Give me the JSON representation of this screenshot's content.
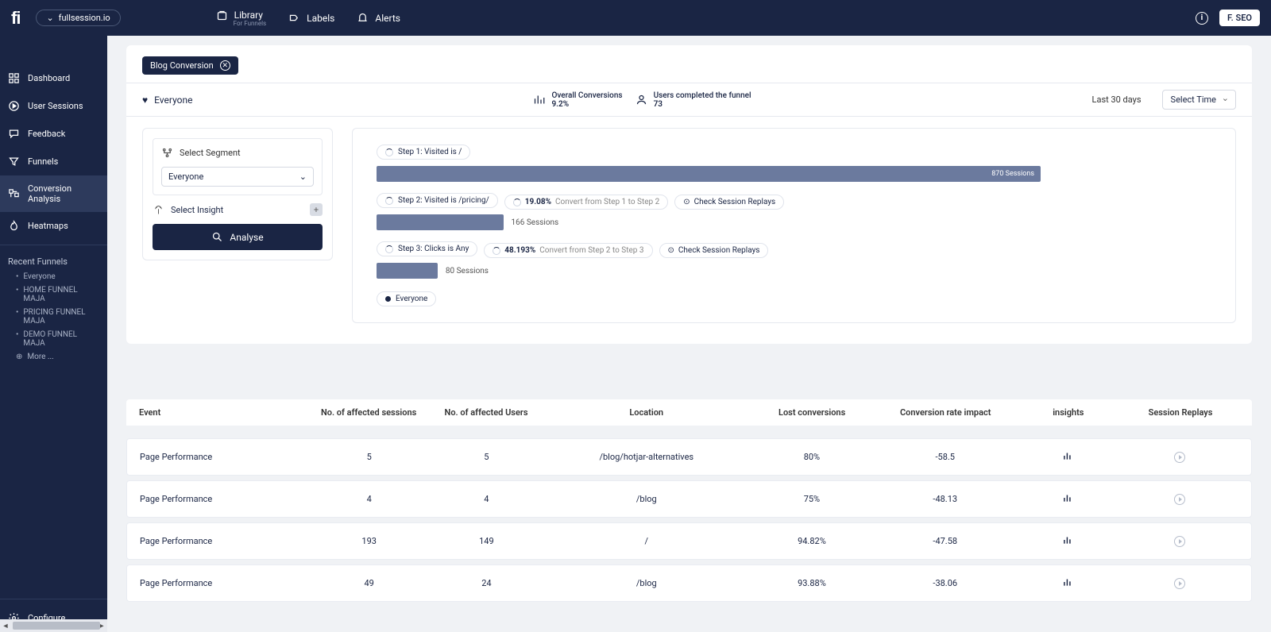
{
  "topbar": {
    "domain": "fullsession.io",
    "nav": {
      "library": "Library",
      "library_sub": "For Funnels",
      "labels": "Labels",
      "alerts": "Alerts"
    },
    "user": "F. SEO"
  },
  "sidebar": {
    "items": {
      "dashboard": "Dashboard",
      "user_sessions": "User Sessions",
      "feedback": "Feedback",
      "funnels": "Funnels",
      "conversion": "Conversion Analysis",
      "heatmaps": "Heatmaps",
      "configure": "Configure"
    },
    "recent_title": "Recent Funnels",
    "recent": {
      "r0": "Everyone",
      "r1": "HOME FUNNEL MAJA",
      "r2": "PRICING FUNNEL MAJA",
      "r3": "DEMO FUNNEL MAJA",
      "more": "More ..."
    }
  },
  "page": {
    "funnel_tag": "Blog Conversion",
    "segment_label": "Everyone",
    "stat1_title": "Overall Conversions",
    "stat1_val": "9.2%",
    "stat2_title": "Users completed the funnel",
    "stat2_val": "73",
    "time_label": "Last 30 days",
    "time_select": "Select Time"
  },
  "left_panel": {
    "select_segment": "Select Segment",
    "segment_value": "Everyone",
    "select_insight": "Select Insight",
    "analyse": "Analyse"
  },
  "funnel": {
    "max_sessions": 870,
    "bar_color": "#6b7a9e",
    "step1": {
      "label": "Step 1: Visited is /",
      "sessions": 870,
      "sessions_label": "870 Sessions"
    },
    "step2": {
      "label": "Step 2: Visited is /pricing/",
      "pct": "19.08%",
      "convert": "Convert from Step 1 to Step 2",
      "replay": "Check Session Replays",
      "sessions": 166,
      "sessions_label": "166 Sessions"
    },
    "step3": {
      "label": "Step 3: Clicks is Any",
      "pct": "48.193%",
      "convert": "Convert from Step 2 to Step 3",
      "replay": "Check Session Replays",
      "sessions": 80,
      "sessions_label": "80 Sessions"
    },
    "legend": "Everyone"
  },
  "table": {
    "headers": {
      "event": "Event",
      "sessions": "No. of affected sessions",
      "users": "No. of affected Users",
      "location": "Location",
      "lost": "Lost conversions",
      "impact": "Conversion rate impact",
      "insights": "insights",
      "replays": "Session Replays"
    },
    "rows": {
      "r0": {
        "event": "Page Performance",
        "sessions": "5",
        "users": "5",
        "location": "/blog/hotjar-alternatives",
        "lost": "80%",
        "impact": "-58.5"
      },
      "r1": {
        "event": "Page Performance",
        "sessions": "4",
        "users": "4",
        "location": "/blog",
        "lost": "75%",
        "impact": "-48.13"
      },
      "r2": {
        "event": "Page Performance",
        "sessions": "193",
        "users": "149",
        "location": "/",
        "lost": "94.82%",
        "impact": "-47.58"
      },
      "r3": {
        "event": "Page Performance",
        "sessions": "49",
        "users": "24",
        "location": "/blog",
        "lost": "93.88%",
        "impact": "-38.06"
      }
    }
  }
}
